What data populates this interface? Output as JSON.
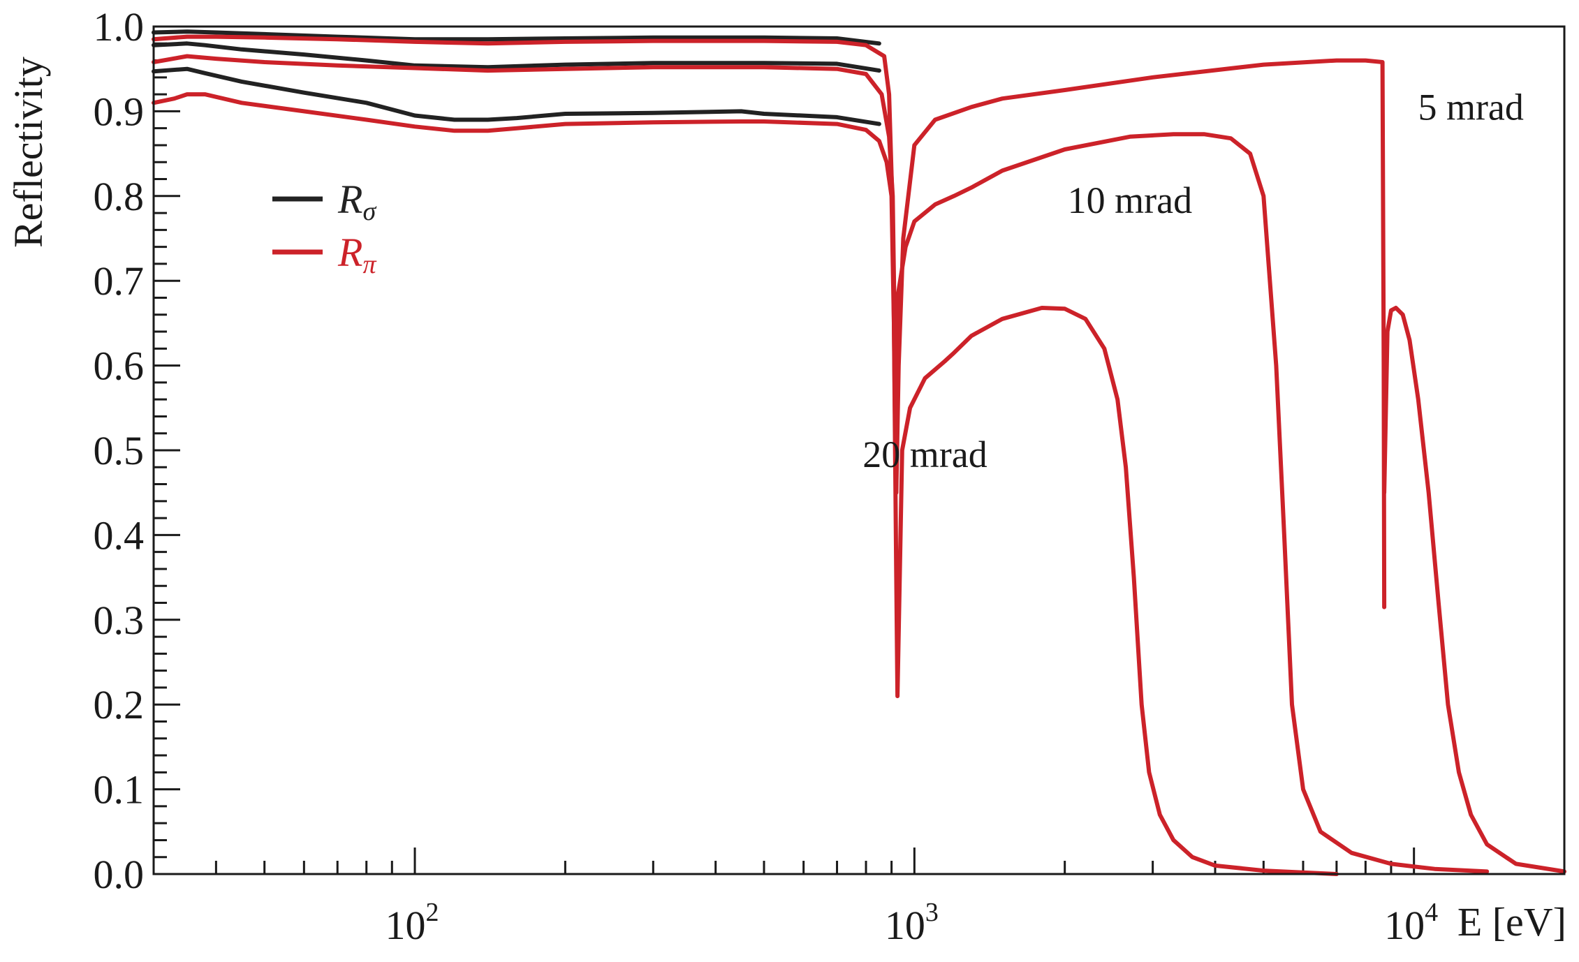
{
  "chart_data": {
    "type": "line",
    "title": "",
    "xlabel": "E [eV]",
    "ylabel": "Reflectivity",
    "x_scale": "log",
    "xlim": [
      30,
      20000
    ],
    "ylim": [
      0,
      1.0
    ],
    "grid": false,
    "legend_position": "upper-left",
    "x_tick_labels": [
      {
        "value": 100,
        "base": "10",
        "exp": "2"
      },
      {
        "value": 1000,
        "base": "10",
        "exp": "3"
      },
      {
        "value": 10000,
        "base": "10",
        "exp": "4"
      }
    ],
    "y_tick_labels": [
      "0.0",
      "0.1",
      "0.2",
      "0.3",
      "0.4",
      "0.5",
      "0.6",
      "0.7",
      "0.8",
      "0.9",
      "1.0"
    ],
    "y_tick_values": [
      0,
      0.1,
      0.2,
      0.3,
      0.4,
      0.5,
      0.6,
      0.7,
      0.8,
      0.9,
      1.0
    ],
    "legend": [
      {
        "symbol": "R",
        "subscript": "σ",
        "color": "#222222"
      },
      {
        "symbol": "R",
        "subscript": "π",
        "color": "#cc2229"
      }
    ],
    "annotations": [
      {
        "text": "5 mrad",
        "x": 13000,
        "y": 0.905
      },
      {
        "text": "10 mrad",
        "x": 2700,
        "y": 0.795
      },
      {
        "text": "20 mrad",
        "x": 1050,
        "y": 0.495
      }
    ],
    "series": [
      {
        "group": "5 mrad",
        "polarization": "sigma",
        "color": "#222222",
        "x": [
          30,
          35,
          40,
          50,
          70,
          100,
          140,
          200,
          300,
          500,
          700,
          850
        ],
        "y": [
          0.993,
          0.994,
          0.993,
          0.991,
          0.988,
          0.985,
          0.985,
          0.986,
          0.987,
          0.987,
          0.986,
          0.98
        ]
      },
      {
        "group": "10 mrad",
        "polarization": "sigma",
        "color": "#222222",
        "x": [
          30,
          35,
          38,
          45,
          60,
          80,
          100,
          140,
          200,
          300,
          500,
          700,
          850
        ],
        "y": [
          0.978,
          0.98,
          0.978,
          0.973,
          0.967,
          0.96,
          0.954,
          0.952,
          0.955,
          0.957,
          0.957,
          0.956,
          0.948
        ]
      },
      {
        "group": "20 mrad",
        "polarization": "sigma",
        "color": "#222222",
        "x": [
          30,
          35,
          38,
          45,
          60,
          80,
          100,
          120,
          140,
          160,
          200,
          300,
          450,
          500,
          700,
          850
        ],
        "y": [
          0.947,
          0.95,
          0.945,
          0.935,
          0.922,
          0.91,
          0.895,
          0.89,
          0.89,
          0.892,
          0.897,
          0.898,
          0.9,
          0.897,
          0.893,
          0.885
        ]
      },
      {
        "group": "5 mrad",
        "polarization": "pi",
        "color": "#cc2229",
        "x": [
          30,
          35,
          40,
          50,
          70,
          100,
          140,
          200,
          300,
          500,
          700,
          800,
          870,
          890,
          905,
          915,
          920,
          930,
          950,
          1000,
          1100,
          1300,
          1500,
          2000,
          3000,
          5000,
          7000,
          8000,
          8650,
          8700,
          8720
        ],
        "y": [
          0.985,
          0.988,
          0.988,
          0.987,
          0.985,
          0.982,
          0.98,
          0.982,
          0.983,
          0.983,
          0.982,
          0.978,
          0.965,
          0.92,
          0.78,
          0.52,
          0.45,
          0.6,
          0.75,
          0.86,
          0.89,
          0.905,
          0.915,
          0.925,
          0.94,
          0.955,
          0.96,
          0.96,
          0.958,
          0.6,
          0.315
        ]
      },
      {
        "group": "10 mrad",
        "polarization": "pi",
        "color": "#cc2229",
        "x": [
          30,
          35,
          40,
          50,
          70,
          100,
          140,
          200,
          300,
          500,
          700,
          800,
          860,
          890,
          905,
          915,
          925,
          960,
          1000,
          1100,
          1200,
          1300,
          1500,
          2000,
          2700,
          3300,
          3800,
          4300,
          4700,
          5000,
          5300,
          5500,
          5700,
          6000,
          6500,
          7500,
          9000,
          11000,
          14000
        ],
        "y": [
          0.958,
          0.965,
          0.962,
          0.958,
          0.954,
          0.951,
          0.948,
          0.95,
          0.952,
          0.952,
          0.95,
          0.944,
          0.92,
          0.87,
          0.8,
          0.6,
          0.68,
          0.74,
          0.77,
          0.79,
          0.8,
          0.81,
          0.83,
          0.855,
          0.87,
          0.873,
          0.873,
          0.868,
          0.85,
          0.8,
          0.6,
          0.4,
          0.2,
          0.1,
          0.05,
          0.025,
          0.012,
          0.006,
          0.003
        ]
      },
      {
        "group": "20 mrad",
        "polarization": "pi",
        "color": "#cc2229",
        "x": [
          30,
          33,
          35,
          38,
          45,
          60,
          80,
          100,
          120,
          140,
          160,
          200,
          300,
          450,
          500,
          700,
          800,
          850,
          880,
          900,
          910,
          920,
          925,
          945,
          980,
          1050,
          1150,
          1200,
          1300,
          1500,
          1800,
          2000,
          2200,
          2400,
          2550,
          2650,
          2750,
          2850,
          2950,
          3100,
          3300,
          3600,
          4000,
          5000,
          7000
        ],
        "y": [
          0.91,
          0.915,
          0.92,
          0.92,
          0.91,
          0.9,
          0.89,
          0.882,
          0.877,
          0.877,
          0.88,
          0.885,
          0.887,
          0.888,
          0.888,
          0.885,
          0.878,
          0.865,
          0.84,
          0.8,
          0.65,
          0.35,
          0.21,
          0.5,
          0.55,
          0.585,
          0.605,
          0.615,
          0.635,
          0.655,
          0.668,
          0.667,
          0.655,
          0.62,
          0.56,
          0.48,
          0.35,
          0.2,
          0.12,
          0.07,
          0.04,
          0.02,
          0.01,
          0.004,
          0.0
        ]
      },
      {
        "group": "5 mrad",
        "polarization": "pi",
        "color": "#cc2229",
        "x": [
          8720,
          8850,
          9000,
          9200,
          9500,
          9800,
          10200,
          10700,
          11200,
          11700,
          12300,
          13000,
          14000,
          16000,
          20000
        ],
        "y": [
          0.45,
          0.64,
          0.665,
          0.668,
          0.66,
          0.63,
          0.56,
          0.45,
          0.32,
          0.2,
          0.12,
          0.07,
          0.035,
          0.012,
          0.003
        ]
      }
    ]
  }
}
